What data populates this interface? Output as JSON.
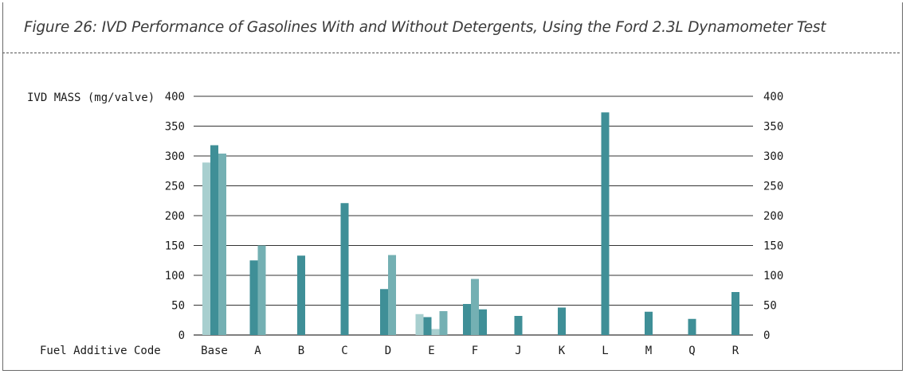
{
  "title": "Figure 26: IVD Performance of Gasolines With and Without Detergents, Using the Ford 2.3L Dynamometer Test",
  "chart_data": {
    "type": "bar",
    "ylabel": "IVD MASS (mg/valve)",
    "xlabel": "Fuel Additive Code",
    "ylim": [
      0,
      400
    ],
    "yticks": [
      0,
      50,
      100,
      150,
      200,
      250,
      300,
      350,
      400
    ],
    "grid": true,
    "right_axis": true,
    "colors": {
      "light": "#a8cfcf",
      "dark": "#3f8f97",
      "medium": "#74b0b3",
      "axis": "#333333"
    },
    "groups": [
      {
        "label": "Base",
        "bars": [
          {
            "value": 289,
            "shade": "light"
          },
          {
            "value": 318,
            "shade": "dark"
          },
          {
            "value": 304,
            "shade": "medium"
          }
        ]
      },
      {
        "label": "A",
        "bars": [
          {
            "value": 125,
            "shade": "dark"
          },
          {
            "value": 150,
            "shade": "medium"
          }
        ]
      },
      {
        "label": "B",
        "bars": [
          {
            "value": 133,
            "shade": "dark"
          }
        ]
      },
      {
        "label": "C",
        "bars": [
          {
            "value": 221,
            "shade": "dark"
          }
        ]
      },
      {
        "label": "D",
        "bars": [
          {
            "value": 77,
            "shade": "dark"
          },
          {
            "value": 134,
            "shade": "medium"
          }
        ]
      },
      {
        "label": "E",
        "bars": [
          {
            "value": 35,
            "shade": "light"
          },
          {
            "value": 30,
            "shade": "dark"
          },
          {
            "value": 10,
            "shade": "light"
          },
          {
            "value": 40,
            "shade": "medium"
          }
        ]
      },
      {
        "label": "F",
        "bars": [
          {
            "value": 52,
            "shade": "dark"
          },
          {
            "value": 94,
            "shade": "medium"
          },
          {
            "value": 43,
            "shade": "dark"
          }
        ]
      },
      {
        "label": "J",
        "bars": [
          {
            "value": 32,
            "shade": "dark"
          }
        ]
      },
      {
        "label": "K",
        "bars": [
          {
            "value": 46,
            "shade": "dark"
          }
        ]
      },
      {
        "label": "L",
        "bars": [
          {
            "value": 373,
            "shade": "dark"
          }
        ]
      },
      {
        "label": "M",
        "bars": [
          {
            "value": 39,
            "shade": "dark"
          }
        ]
      },
      {
        "label": "Q",
        "bars": [
          {
            "value": 27,
            "shade": "dark"
          }
        ]
      },
      {
        "label": "R",
        "bars": [
          {
            "value": 72,
            "shade": "dark"
          }
        ]
      }
    ]
  }
}
